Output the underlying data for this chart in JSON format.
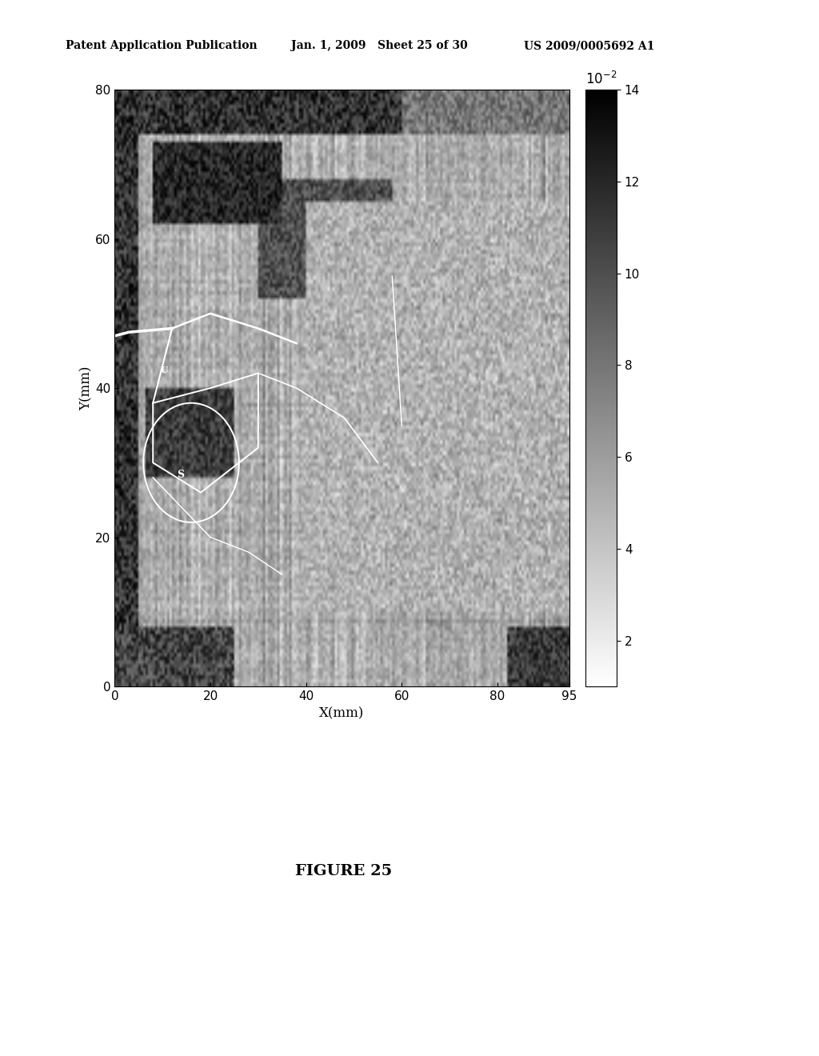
{
  "title_left": "Patent Application Publication",
  "title_mid": "Jan. 1, 2009   Sheet 25 of 30",
  "title_right": "US 2009/0005692 A1",
  "figure_label": "FIGURE 25",
  "xlabel": "X(mm)",
  "ylabel": "Y(mm)",
  "xlim": [
    0,
    95
  ],
  "ylim": [
    0,
    80
  ],
  "xticks": [
    0,
    20,
    40,
    60,
    80,
    95
  ],
  "yticks": [
    0,
    20,
    40,
    60,
    80
  ],
  "colorbar_ticks": [
    2,
    4,
    6,
    8,
    10,
    12,
    14
  ],
  "colorbar_vmin": 1,
  "colorbar_vmax": 14,
  "background_color": "#ffffff",
  "seed": 42
}
